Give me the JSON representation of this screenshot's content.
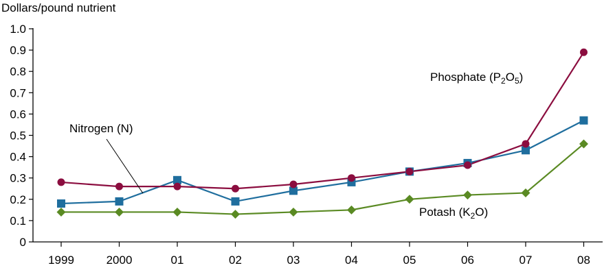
{
  "chart_data": {
    "type": "line",
    "ylabel": "Dollars/pound nutrient",
    "xlabel": "",
    "title": "",
    "categories": [
      "1999",
      "2000",
      "01",
      "02",
      "03",
      "04",
      "05",
      "06",
      "07",
      "08"
    ],
    "ylim": [
      0,
      1.0
    ],
    "yticks": [
      "0",
      "0.1",
      "0.2",
      "0.3",
      "0.4",
      "0.5",
      "0.6",
      "0.7",
      "0.8",
      "0.9",
      "1.0"
    ],
    "grid": false,
    "series": [
      {
        "key": "nitrogen",
        "name": "Nitrogen (N)",
        "color": "#1f6e9e",
        "marker": "square",
        "values": [
          0.18,
          0.19,
          0.29,
          0.19,
          0.24,
          0.28,
          0.33,
          0.37,
          0.43,
          0.57
        ]
      },
      {
        "key": "phosphate",
        "name_text": "Phosphate (P",
        "name_sub1": "2",
        "name_mid": "O",
        "name_sub2": "5",
        "name_end": ")",
        "color": "#8b0d3f",
        "marker": "circle",
        "values": [
          0.28,
          0.26,
          0.26,
          0.25,
          0.27,
          0.3,
          0.33,
          0.36,
          0.46,
          0.89
        ]
      },
      {
        "key": "potash",
        "name_text": "Potash (K",
        "name_sub1": "2",
        "name_end": "O)",
        "color": "#5a8a23",
        "marker": "diamond",
        "values": [
          0.14,
          0.14,
          0.14,
          0.13,
          0.14,
          0.15,
          0.2,
          0.22,
          0.23,
          0.46
        ]
      }
    ]
  }
}
